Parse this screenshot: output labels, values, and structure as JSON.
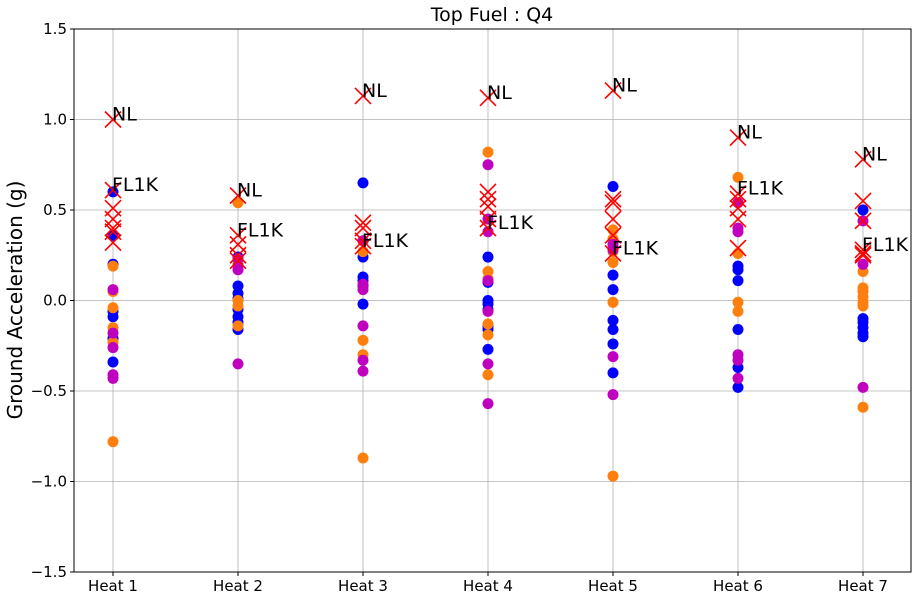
{
  "chart_data": {
    "type": "scatter",
    "title": "Top Fuel  : Q4",
    "ylabel": "Ground Acceleration (g)",
    "xlabel": "",
    "categories": [
      "Heat 1",
      "Heat 2",
      "Heat 3",
      "Heat 4",
      "Heat 5",
      "Heat 6",
      "Heat 7"
    ],
    "ylim": [
      -1.5,
      1.5
    ],
    "yticks": [
      -1.5,
      -1.0,
      -0.5,
      0.0,
      0.5,
      1.0,
      1.5
    ],
    "ytick_labels": [
      "−1.5",
      "−1.0",
      "−0.5",
      "0.0",
      "0.5",
      "1.0",
      "1.5"
    ],
    "grid": true,
    "colors": {
      "blue": "#0000ff",
      "orange": "#ff7f0e",
      "magenta": "#bf00bf",
      "red": "#ff0000"
    },
    "series": [
      {
        "color": "blue",
        "marker": "circle",
        "points": [
          [
            0,
            0.6
          ],
          [
            0,
            0.36
          ],
          [
            0,
            0.2
          ],
          [
            0,
            -0.06
          ],
          [
            0,
            -0.09
          ],
          [
            0,
            -0.21
          ],
          [
            0,
            -0.34
          ],
          [
            1,
            0.24
          ],
          [
            1,
            0.08
          ],
          [
            1,
            0.04
          ],
          [
            1,
            0.01
          ],
          [
            1,
            -0.05
          ],
          [
            1,
            -0.09
          ],
          [
            1,
            -0.12
          ],
          [
            1,
            -0.16
          ],
          [
            2,
            0.65
          ],
          [
            2,
            0.24
          ],
          [
            2,
            0.13
          ],
          [
            2,
            0.11
          ],
          [
            2,
            0.08
          ],
          [
            2,
            -0.02
          ],
          [
            3,
            0.24
          ],
          [
            3,
            0.1
          ],
          [
            3,
            0.0
          ],
          [
            3,
            -0.02
          ],
          [
            3,
            -0.05
          ],
          [
            3,
            -0.14
          ],
          [
            3,
            -0.16
          ],
          [
            3,
            -0.27
          ],
          [
            4,
            0.63
          ],
          [
            4,
            0.14
          ],
          [
            4,
            0.06
          ],
          [
            4,
            -0.11
          ],
          [
            4,
            -0.16
          ],
          [
            4,
            -0.24
          ],
          [
            4,
            -0.4
          ],
          [
            5,
            0.19
          ],
          [
            5,
            0.17
          ],
          [
            5,
            0.11
          ],
          [
            5,
            -0.16
          ],
          [
            5,
            -0.37
          ],
          [
            5,
            -0.48
          ],
          [
            6,
            0.5
          ],
          [
            6,
            -0.1
          ],
          [
            6,
            -0.12
          ],
          [
            6,
            -0.15
          ],
          [
            6,
            -0.18
          ],
          [
            6,
            -0.2
          ]
        ]
      },
      {
        "color": "orange",
        "marker": "circle",
        "points": [
          [
            0,
            0.19
          ],
          [
            0,
            0.05
          ],
          [
            0,
            -0.04
          ],
          [
            0,
            -0.15
          ],
          [
            0,
            -0.23
          ],
          [
            0,
            -0.78
          ],
          [
            1,
            0.54
          ],
          [
            1,
            0.2
          ],
          [
            1,
            0.0
          ],
          [
            1,
            -0.03
          ],
          [
            1,
            -0.14
          ],
          [
            2,
            0.27
          ],
          [
            2,
            -0.22
          ],
          [
            2,
            -0.3
          ],
          [
            2,
            -0.87
          ],
          [
            3,
            0.82
          ],
          [
            3,
            0.16
          ],
          [
            3,
            0.12
          ],
          [
            3,
            -0.13
          ],
          [
            3,
            -0.19
          ],
          [
            3,
            -0.41
          ],
          [
            4,
            0.39
          ],
          [
            4,
            0.34
          ],
          [
            4,
            0.27
          ],
          [
            4,
            0.21
          ],
          [
            4,
            -0.01
          ],
          [
            4,
            -0.97
          ],
          [
            5,
            0.68
          ],
          [
            5,
            0.26
          ],
          [
            5,
            -0.01
          ],
          [
            5,
            -0.06
          ],
          [
            6,
            0.16
          ],
          [
            6,
            0.07
          ],
          [
            6,
            0.05
          ],
          [
            6,
            0.02
          ],
          [
            6,
            -0.01
          ],
          [
            6,
            -0.03
          ],
          [
            6,
            -0.59
          ]
        ]
      },
      {
        "color": "magenta",
        "marker": "circle",
        "points": [
          [
            0,
            0.06
          ],
          [
            0,
            -0.18
          ],
          [
            0,
            -0.26
          ],
          [
            0,
            -0.41
          ],
          [
            0,
            -0.43
          ],
          [
            1,
            0.23
          ],
          [
            1,
            0.19
          ],
          [
            1,
            0.17
          ],
          [
            1,
            -0.35
          ],
          [
            2,
            0.33
          ],
          [
            2,
            0.09
          ],
          [
            2,
            0.06
          ],
          [
            2,
            -0.14
          ],
          [
            2,
            -0.33
          ],
          [
            2,
            -0.39
          ],
          [
            3,
            0.75
          ],
          [
            3,
            0.45
          ],
          [
            3,
            0.38
          ],
          [
            3,
            0.11
          ],
          [
            3,
            -0.06
          ],
          [
            3,
            -0.35
          ],
          [
            3,
            -0.57
          ],
          [
            4,
            0.31
          ],
          [
            4,
            0.28
          ],
          [
            4,
            -0.31
          ],
          [
            4,
            -0.52
          ],
          [
            5,
            0.54
          ],
          [
            5,
            0.4
          ],
          [
            5,
            0.38
          ],
          [
            5,
            -0.3
          ],
          [
            5,
            -0.33
          ],
          [
            5,
            -0.43
          ],
          [
            6,
            0.44
          ],
          [
            6,
            0.2
          ],
          [
            6,
            -0.48
          ]
        ]
      },
      {
        "color": "red",
        "marker": "x",
        "points": [
          [
            0,
            1.0
          ],
          [
            0,
            0.61
          ],
          [
            0,
            0.51
          ],
          [
            0,
            0.45
          ],
          [
            0,
            0.4
          ],
          [
            0,
            0.38
          ],
          [
            0,
            0.32
          ],
          [
            1,
            0.58
          ],
          [
            1,
            0.36
          ],
          [
            1,
            0.31
          ],
          [
            1,
            0.25
          ],
          [
            1,
            0.22
          ],
          [
            2,
            1.13
          ],
          [
            2,
            0.43
          ],
          [
            2,
            0.4
          ],
          [
            2,
            0.33
          ],
          [
            2,
            0.3
          ],
          [
            3,
            1.12
          ],
          [
            3,
            0.6
          ],
          [
            3,
            0.56
          ],
          [
            3,
            0.52
          ],
          [
            3,
            0.45
          ],
          [
            3,
            0.4
          ],
          [
            4,
            1.16
          ],
          [
            4,
            0.56
          ],
          [
            4,
            0.54
          ],
          [
            4,
            0.45
          ],
          [
            4,
            0.36
          ],
          [
            4,
            0.26
          ],
          [
            5,
            0.9
          ],
          [
            5,
            0.59
          ],
          [
            5,
            0.56
          ],
          [
            5,
            0.51
          ],
          [
            5,
            0.45
          ],
          [
            5,
            0.29
          ],
          [
            6,
            0.78
          ],
          [
            6,
            0.55
          ],
          [
            6,
            0.44
          ],
          [
            6,
            0.28
          ],
          [
            6,
            0.26
          ],
          [
            6,
            0.25
          ]
        ]
      }
    ],
    "annotations": [
      {
        "text": "NL",
        "x": 0,
        "y": 1.0
      },
      {
        "text": "FL1K",
        "x": 0,
        "y": 0.61
      },
      {
        "text": "NL",
        "x": 1,
        "y": 0.58
      },
      {
        "text": "FL1K",
        "x": 1,
        "y": 0.36
      },
      {
        "text": "NL",
        "x": 2,
        "y": 1.13
      },
      {
        "text": "FL1K",
        "x": 2,
        "y": 0.3
      },
      {
        "text": "NL",
        "x": 3,
        "y": 1.12
      },
      {
        "text": "FL1K",
        "x": 3,
        "y": 0.4
      },
      {
        "text": "NL",
        "x": 4,
        "y": 1.16
      },
      {
        "text": "FL1K",
        "x": 4,
        "y": 0.26
      },
      {
        "text": "NL",
        "x": 5,
        "y": 0.9
      },
      {
        "text": "FL1K",
        "x": 5,
        "y": 0.59
      },
      {
        "text": "NL",
        "x": 6,
        "y": 0.78
      },
      {
        "text": "FL1K",
        "x": 6,
        "y": 0.28
      }
    ]
  }
}
